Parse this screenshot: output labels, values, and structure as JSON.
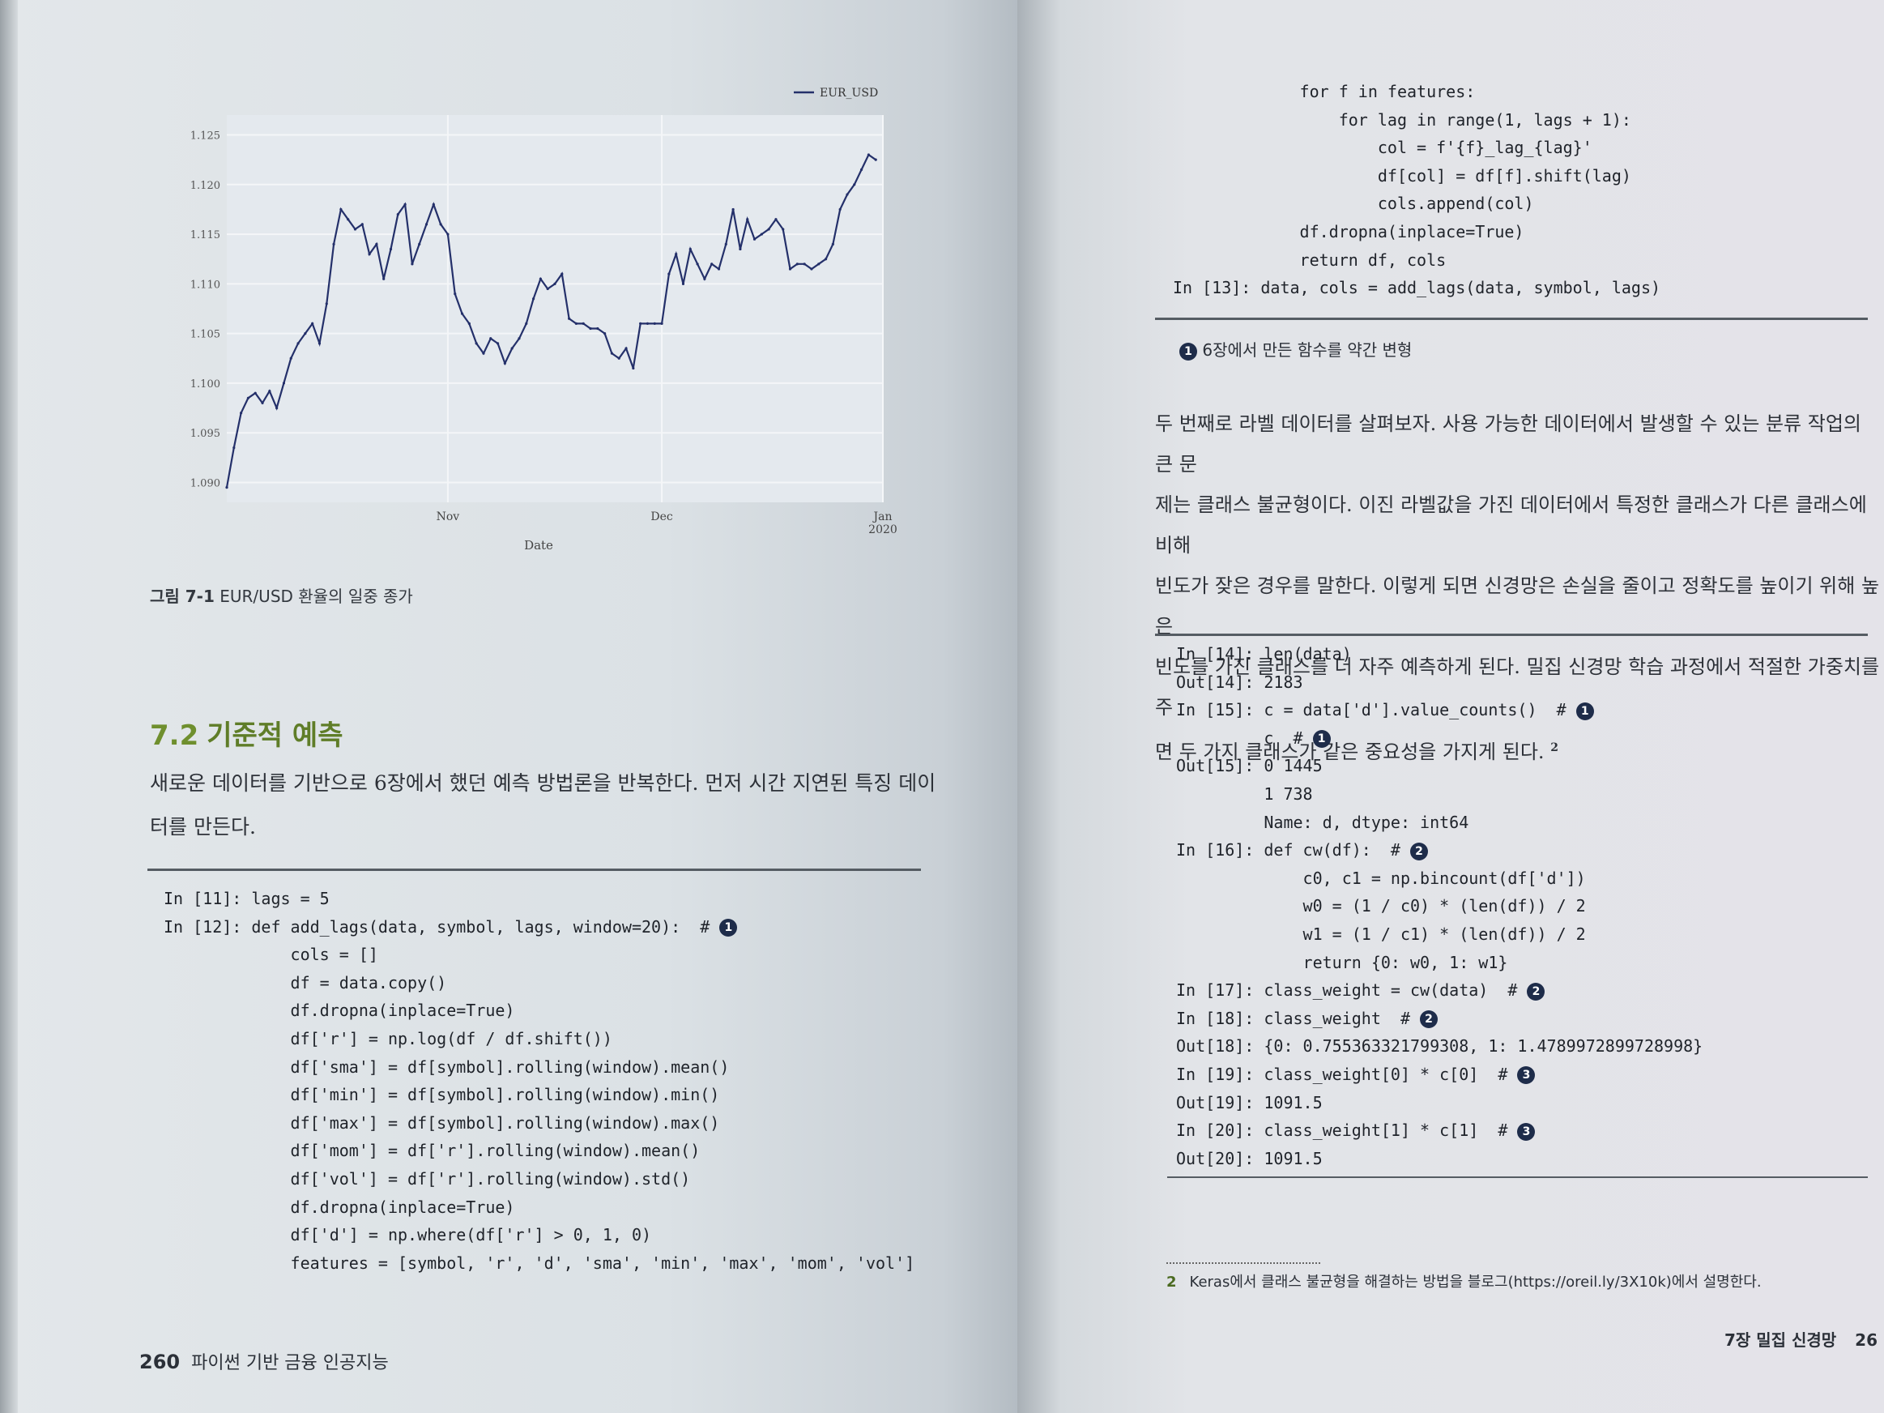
{
  "left": {
    "chart_data": {
      "type": "line",
      "title": "",
      "xlabel": "Date",
      "ylabel": "",
      "legend": [
        "EUR_USD"
      ],
      "legend_position": "top-right",
      "y_ticks": [
        "1.090",
        "1.095",
        "1.100",
        "1.105",
        "1.110",
        "1.115",
        "1.120",
        "1.125"
      ],
      "ylim": [
        1.088,
        1.127
      ],
      "x_ticks": [
        {
          "label": "Nov",
          "x": "2019-11-01"
        },
        {
          "label": "Dec",
          "x": "2019-12-01"
        },
        {
          "label": "Jan\n2020",
          "x": "2020-01-01"
        }
      ],
      "xlim": [
        "2019-10-01",
        "2020-01-01"
      ],
      "grid": true,
      "series": [
        {
          "name": "EUR_USD",
          "x": [
            "2019-10-01",
            "2019-10-02",
            "2019-10-03",
            "2019-10-04",
            "2019-10-05",
            "2019-10-06",
            "2019-10-07",
            "2019-10-08",
            "2019-10-09",
            "2019-10-10",
            "2019-10-11",
            "2019-10-12",
            "2019-10-13",
            "2019-10-14",
            "2019-10-15",
            "2019-10-16",
            "2019-10-17",
            "2019-10-18",
            "2019-10-19",
            "2019-10-20",
            "2019-10-21",
            "2019-10-22",
            "2019-10-23",
            "2019-10-24",
            "2019-10-25",
            "2019-10-26",
            "2019-10-27",
            "2019-10-28",
            "2019-10-29",
            "2019-10-30",
            "2019-10-31",
            "2019-11-01",
            "2019-11-02",
            "2019-11-03",
            "2019-11-04",
            "2019-11-05",
            "2019-11-06",
            "2019-11-07",
            "2019-11-08",
            "2019-11-09",
            "2019-11-10",
            "2019-11-11",
            "2019-11-12",
            "2019-11-13",
            "2019-11-14",
            "2019-11-15",
            "2019-11-16",
            "2019-11-17",
            "2019-11-18",
            "2019-11-19",
            "2019-11-20",
            "2019-11-21",
            "2019-11-22",
            "2019-11-23",
            "2019-11-24",
            "2019-11-25",
            "2019-11-26",
            "2019-11-27",
            "2019-11-28",
            "2019-11-29",
            "2019-11-30",
            "2019-12-01",
            "2019-12-02",
            "2019-12-03",
            "2019-12-04",
            "2019-12-05",
            "2019-12-06",
            "2019-12-07",
            "2019-12-08",
            "2019-12-09",
            "2019-12-10",
            "2019-12-11",
            "2019-12-12",
            "2019-12-13",
            "2019-12-14",
            "2019-12-15",
            "2019-12-16",
            "2019-12-17",
            "2019-12-18",
            "2019-12-19",
            "2019-12-20",
            "2019-12-21",
            "2019-12-22",
            "2019-12-23",
            "2019-12-24",
            "2019-12-25",
            "2019-12-26",
            "2019-12-27",
            "2019-12-28",
            "2019-12-29",
            "2019-12-30",
            "2019-12-31"
          ],
          "values": [
            1.0895,
            1.0935,
            1.097,
            1.0985,
            1.099,
            1.098,
            1.0992,
            1.0975,
            1.1,
            1.1025,
            1.104,
            1.105,
            1.106,
            1.104,
            1.108,
            1.114,
            1.1175,
            1.1165,
            1.1155,
            1.116,
            1.113,
            1.114,
            1.1105,
            1.1135,
            1.117,
            1.118,
            1.112,
            1.114,
            1.116,
            1.118,
            1.116,
            1.115,
            1.109,
            1.107,
            1.106,
            1.104,
            1.103,
            1.1045,
            1.104,
            1.102,
            1.1035,
            1.1045,
            1.106,
            1.1085,
            1.1105,
            1.1095,
            1.11,
            1.111,
            1.1065,
            1.106,
            1.106,
            1.1055,
            1.1055,
            1.105,
            1.103,
            1.1025,
            1.1035,
            1.1015,
            1.106,
            1.106,
            1.106,
            1.106,
            1.111,
            1.113,
            1.11,
            1.1135,
            1.112,
            1.1105,
            1.112,
            1.1115,
            1.114,
            1.1175,
            1.1135,
            1.1165,
            1.1145,
            1.115,
            1.1155,
            1.1165,
            1.1155,
            1.1115,
            1.112,
            1.112,
            1.1115,
            1.112,
            1.1125,
            1.114,
            1.1175,
            1.119,
            1.12,
            1.1215,
            1.123,
            1.1225
          ]
        }
      ]
    },
    "figure_caption": {
      "label": "그림 7-1",
      "text": " EUR/USD 환율의 일중 종가"
    },
    "section": {
      "number": "7.2",
      "title": "기준적 예측"
    },
    "para_lines": [
      "새로운 데이터를 기반으로 6장에서 했던 예측 방법론을 반복한다. 먼저 시간 지연된 특징 데이",
      "터를 만든다."
    ],
    "code_lines": [
      "In [11]: lags = 5",
      "In [12]: def add_lags(data, symbol, lags, window=20):  # ",
      "             cols = []",
      "             df = data.copy()",
      "             df.dropna(inplace=True)",
      "             df['r'] = np.log(df / df.shift())",
      "             df['sma'] = df[symbol].rolling(window).mean()",
      "             df['min'] = df[symbol].rolling(window).min()",
      "             df['max'] = df[symbol].rolling(window).max()",
      "             df['mom'] = df['r'].rolling(window).mean()",
      "             df['vol'] = df['r'].rolling(window).std()",
      "             df.dropna(inplace=True)",
      "             df['d'] = np.where(df['r'] > 0, 1, 0)",
      "             features = [symbol, 'r', 'd', 'sma', 'min', 'max', 'mom', 'vol']"
    ],
    "code_marks": {
      "1": "1"
    },
    "footer": {
      "page": "260",
      "title": "파이썬 기반 금융 인공지능"
    }
  },
  "right": {
    "code_top": [
      "             for f in features:",
      "                 for lag in range(1, lags + 1):",
      "                     col = f'{f}_lag_{lag}'",
      "                     df[col] = df[f].shift(lag)",
      "                     cols.append(col)",
      "             df.dropna(inplace=True)",
      "             return df, cols",
      "In [13]: data, cols = add_lags(data, symbol, lags)"
    ],
    "note1": {
      "mark": "1",
      "text": "6장에서 만든 함수를 약간 변형"
    },
    "para_lines": [
      "두 번째로 라벨 데이터를 살펴보자. 사용 가능한 데이터에서 발생할 수 있는 분류 작업의 큰 문",
      "제는 클래스 불균형이다. 이진 라벨값을 가진 데이터에서 특정한 클래스가 다른 클래스에 비해",
      "빈도가 잦은 경우를 말한다. 이렇게 되면 신경망은 손실을 줄이고 정확도를 높이기 위해 높은",
      "빈도를 가진 클래스를 더 자주 예측하게 된다. 밀집 신경망 학습 과정에서 적절한 가중치를 주",
      "면 두 가지 클래스가 같은 중요성을 가지게 된다."
    ],
    "para_footnote_mark": "2",
    "code_bottom": [
      "In [14]: len(data)",
      "Out[14]: 2183",
      "In [15]: c = data['d'].value_counts()  # ",
      "         c  # ",
      "Out[15]: 0 1445",
      "         1 738",
      "         Name: d, dtype: int64",
      "In [16]: def cw(df):  # ",
      "             c0, c1 = np.bincount(df['d'])",
      "             w0 = (1 / c0) * (len(df)) / 2",
      "             w1 = (1 / c1) * (len(df)) / 2",
      "             return {0: w0, 1: w1}",
      "In [17]: class_weight = cw(data)  # ",
      "In [18]: class_weight  # ",
      "Out[18]: {0: 0.755363321799308, 1: 1.4789972899728998}",
      "In [19]: class_weight[0] * c[0]  # ",
      "Out[19]: 1091.5",
      "In [20]: class_weight[1] * c[1]  # ",
      "Out[20]: 1091.5"
    ],
    "code_bottom_marks": [
      "",
      "",
      "1",
      "1",
      "",
      "",
      "",
      "2",
      "",
      "",
      "",
      "",
      "2",
      "2",
      "",
      "3",
      "",
      "3",
      ""
    ],
    "footnote": {
      "num": "2",
      "text": "Keras에서 클래스 불균형을 해결하는 방법을 블로그(https://oreil.ly/3X10k)에서 설명한다."
    },
    "footer": {
      "title": "7장 밀집 신경망",
      "page": "26"
    }
  }
}
